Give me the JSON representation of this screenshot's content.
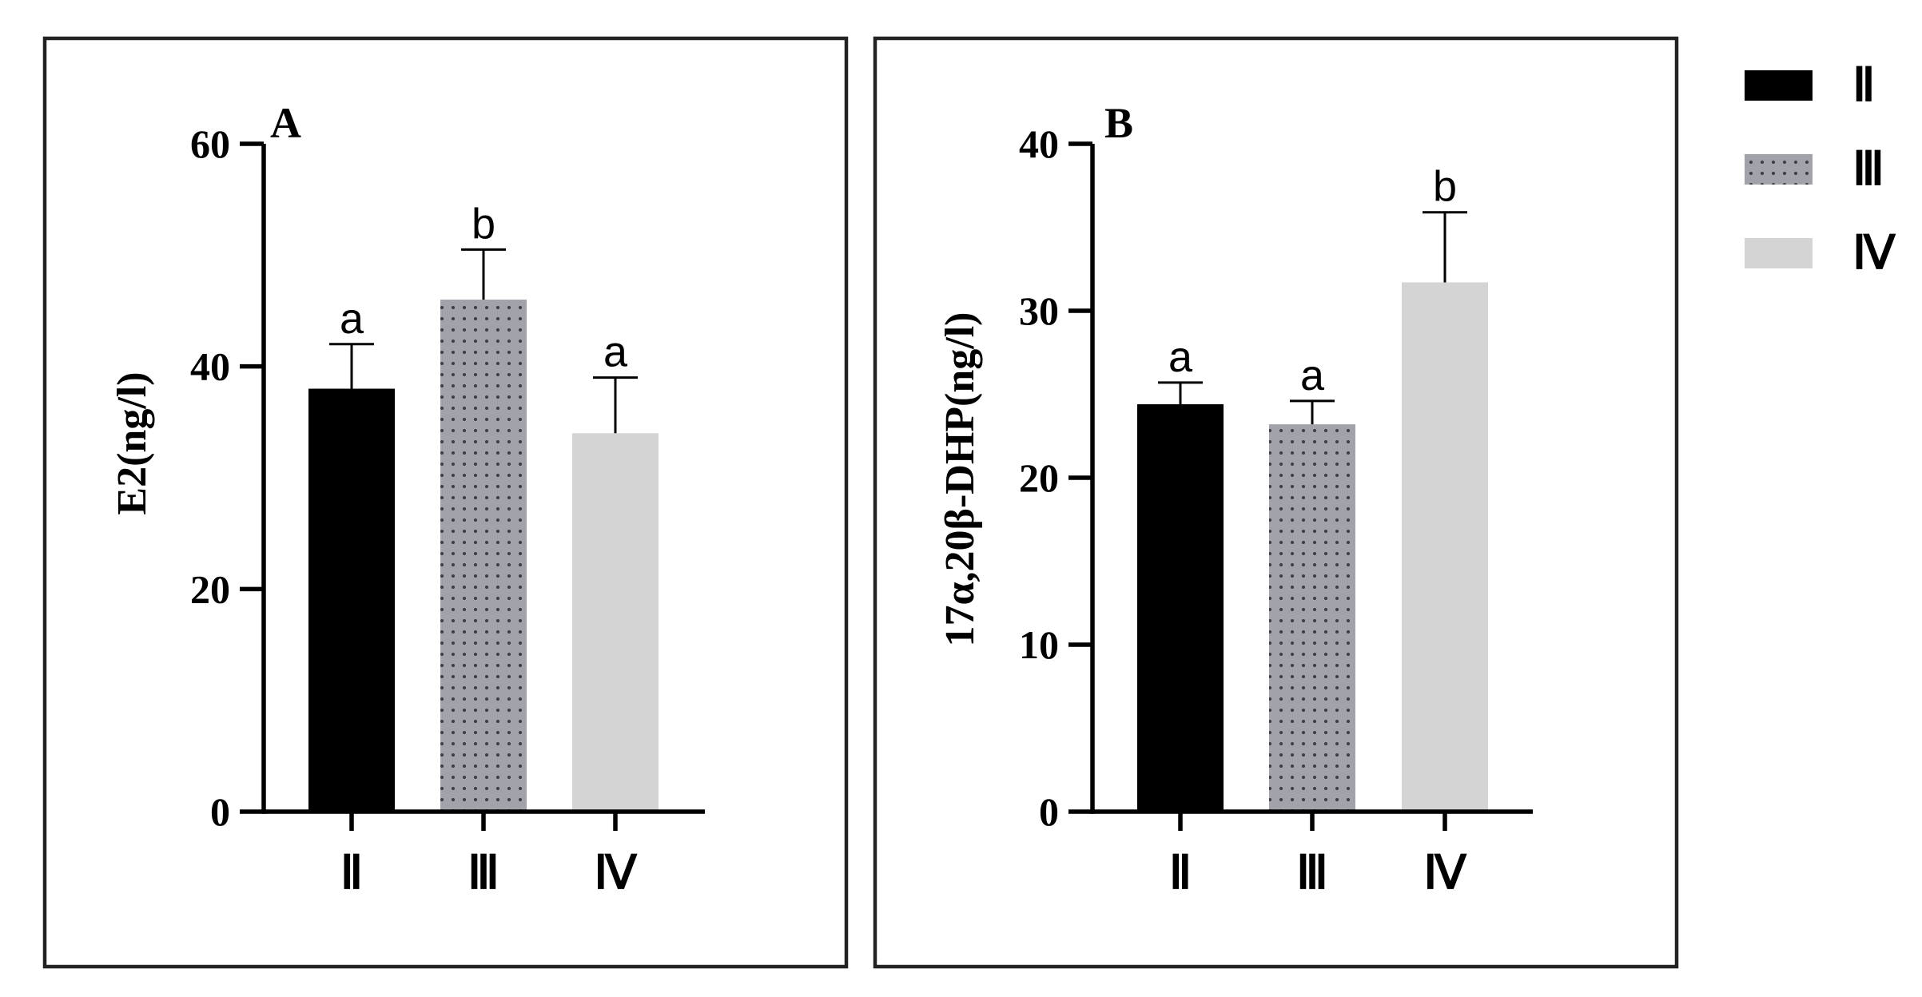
{
  "legend": {
    "items": [
      {
        "label": "Ⅱ",
        "color": "#000000",
        "pattern": "solid"
      },
      {
        "label": "Ⅲ",
        "color": "#8c8c94",
        "pattern": "dots"
      },
      {
        "label": "Ⅳ",
        "color": "#d4d4d4",
        "pattern": "solid"
      }
    ]
  },
  "chart_data": [
    {
      "type": "bar",
      "panel_label": "A",
      "ylabel": "E2(ng/l)",
      "ylim": [
        0,
        60
      ],
      "yticks": [
        0,
        20,
        40,
        60
      ],
      "categories": [
        "Ⅱ",
        "Ⅲ",
        "Ⅳ"
      ],
      "values": [
        38,
        46,
        34
      ],
      "errors": [
        4,
        4.5,
        5
      ],
      "significance": [
        "a",
        "b",
        "a"
      ],
      "colors": [
        "#000000",
        "#8c8c94",
        "#d4d4d4"
      ],
      "grid": false
    },
    {
      "type": "bar",
      "panel_label": "B",
      "ylabel": "17α,20β-DHP(ng/l)",
      "ylim": [
        0,
        40
      ],
      "yticks": [
        0,
        10,
        20,
        30,
        40
      ],
      "categories": [
        "Ⅱ",
        "Ⅲ",
        "Ⅳ"
      ],
      "values": [
        24.4,
        23.2,
        31.7
      ],
      "errors": [
        1.3,
        1.4,
        4.2
      ],
      "significance": [
        "a",
        "a",
        "b"
      ],
      "colors": [
        "#000000",
        "#8c8c94",
        "#d4d4d4"
      ],
      "grid": false
    }
  ]
}
